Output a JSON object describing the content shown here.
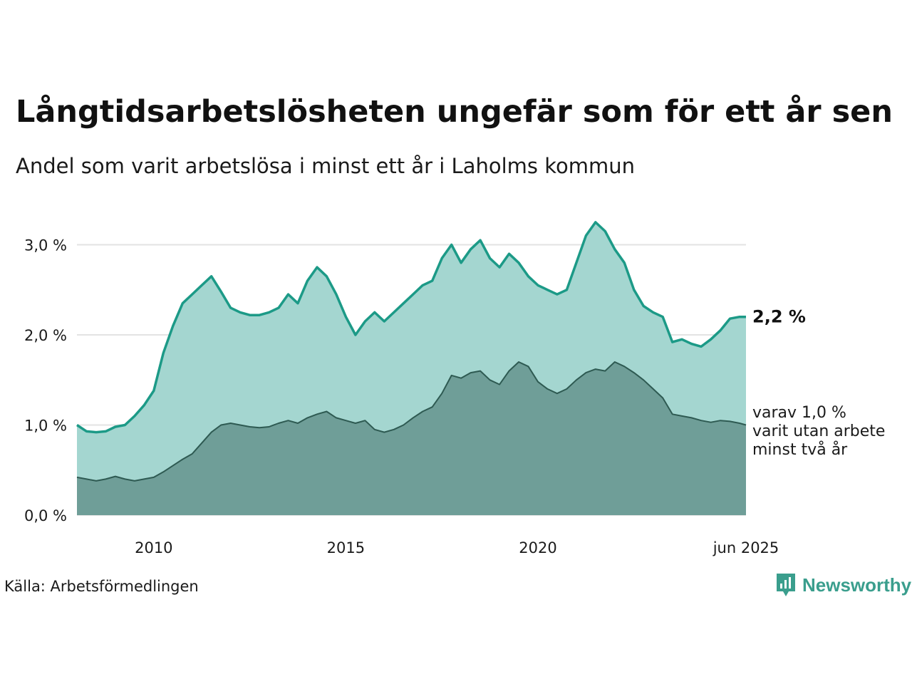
{
  "header": {
    "title": "Långtidsarbetslösheten ungefär som för ett år sen",
    "subtitle": "Andel som varit arbetslösa i minst ett år i Laholms kommun"
  },
  "footer": {
    "source": "Källa: Arbetsförmedlingen",
    "brand": "Newsworthy"
  },
  "colors": {
    "total_line": "#1c9a87",
    "total_fill": "#a4d6d0",
    "long_line": "#2e5a52",
    "long_fill": "#6f9e98",
    "grid": "#e3e3e3",
    "brand": "#3a9e8d"
  },
  "chart_data": {
    "type": "area",
    "x_ticks": [
      "2010",
      "2015",
      "2020",
      "jun 2025"
    ],
    "y_ticks": [
      "0,0 %",
      "1,0 %",
      "2,0 %",
      "3,0 %"
    ],
    "ylim": [
      0,
      3.4
    ],
    "grid": "horizontal",
    "annotations": {
      "total_label": "2,2 %",
      "long_label_lines": [
        "varav 1,0 %",
        "varit utan arbete",
        "minst två år"
      ]
    },
    "x_range": [
      "2008-01",
      "2025-06"
    ],
    "series": [
      {
        "key": "total",
        "points": [
          [
            "2008-01",
            1.0
          ],
          [
            "2008-04",
            0.93
          ],
          [
            "2008-07",
            0.92
          ],
          [
            "2008-10",
            0.93
          ],
          [
            "2009-01",
            0.98
          ],
          [
            "2009-04",
            1.0
          ],
          [
            "2009-07",
            1.1
          ],
          [
            "2009-10",
            1.22
          ],
          [
            "2010-01",
            1.38
          ],
          [
            "2010-04",
            1.8
          ],
          [
            "2010-07",
            2.1
          ],
          [
            "2010-10",
            2.35
          ],
          [
            "2011-01",
            2.45
          ],
          [
            "2011-04",
            2.55
          ],
          [
            "2011-07",
            2.65
          ],
          [
            "2011-10",
            2.48
          ],
          [
            "2012-01",
            2.3
          ],
          [
            "2012-04",
            2.25
          ],
          [
            "2012-07",
            2.22
          ],
          [
            "2012-10",
            2.22
          ],
          [
            "2013-01",
            2.25
          ],
          [
            "2013-04",
            2.3
          ],
          [
            "2013-07",
            2.45
          ],
          [
            "2013-10",
            2.35
          ],
          [
            "2014-01",
            2.6
          ],
          [
            "2014-04",
            2.75
          ],
          [
            "2014-07",
            2.65
          ],
          [
            "2014-10",
            2.45
          ],
          [
            "2015-01",
            2.2
          ],
          [
            "2015-04",
            2.0
          ],
          [
            "2015-07",
            2.15
          ],
          [
            "2015-10",
            2.25
          ],
          [
            "2016-01",
            2.15
          ],
          [
            "2016-04",
            2.25
          ],
          [
            "2016-07",
            2.35
          ],
          [
            "2016-10",
            2.45
          ],
          [
            "2017-01",
            2.55
          ],
          [
            "2017-04",
            2.6
          ],
          [
            "2017-07",
            2.85
          ],
          [
            "2017-10",
            3.0
          ],
          [
            "2018-01",
            2.8
          ],
          [
            "2018-04",
            2.95
          ],
          [
            "2018-07",
            3.05
          ],
          [
            "2018-10",
            2.85
          ],
          [
            "2019-01",
            2.75
          ],
          [
            "2019-04",
            2.9
          ],
          [
            "2019-07",
            2.8
          ],
          [
            "2019-10",
            2.65
          ],
          [
            "2020-01",
            2.55
          ],
          [
            "2020-04",
            2.5
          ],
          [
            "2020-07",
            2.45
          ],
          [
            "2020-10",
            2.5
          ],
          [
            "2021-01",
            2.8
          ],
          [
            "2021-04",
            3.1
          ],
          [
            "2021-07",
            3.25
          ],
          [
            "2021-10",
            3.15
          ],
          [
            "2022-01",
            2.95
          ],
          [
            "2022-04",
            2.8
          ],
          [
            "2022-07",
            2.5
          ],
          [
            "2022-10",
            2.32
          ],
          [
            "2023-01",
            2.25
          ],
          [
            "2023-04",
            2.2
          ],
          [
            "2023-07",
            1.92
          ],
          [
            "2023-10",
            1.95
          ],
          [
            "2024-01",
            1.9
          ],
          [
            "2024-04",
            1.87
          ],
          [
            "2024-07",
            1.95
          ],
          [
            "2024-10",
            2.05
          ],
          [
            "2025-01",
            2.18
          ],
          [
            "2025-04",
            2.2
          ],
          [
            "2025-06",
            2.2
          ]
        ]
      },
      {
        "key": "long",
        "points": [
          [
            "2008-01",
            0.42
          ],
          [
            "2008-04",
            0.4
          ],
          [
            "2008-07",
            0.38
          ],
          [
            "2008-10",
            0.4
          ],
          [
            "2009-01",
            0.43
          ],
          [
            "2009-04",
            0.4
          ],
          [
            "2009-07",
            0.38
          ],
          [
            "2009-10",
            0.4
          ],
          [
            "2010-01",
            0.42
          ],
          [
            "2010-04",
            0.48
          ],
          [
            "2010-07",
            0.55
          ],
          [
            "2010-10",
            0.62
          ],
          [
            "2011-01",
            0.68
          ],
          [
            "2011-04",
            0.8
          ],
          [
            "2011-07",
            0.92
          ],
          [
            "2011-10",
            1.0
          ],
          [
            "2012-01",
            1.02
          ],
          [
            "2012-04",
            1.0
          ],
          [
            "2012-07",
            0.98
          ],
          [
            "2012-10",
            0.97
          ],
          [
            "2013-01",
            0.98
          ],
          [
            "2013-04",
            1.02
          ],
          [
            "2013-07",
            1.05
          ],
          [
            "2013-10",
            1.02
          ],
          [
            "2014-01",
            1.08
          ],
          [
            "2014-04",
            1.12
          ],
          [
            "2014-07",
            1.15
          ],
          [
            "2014-10",
            1.08
          ],
          [
            "2015-01",
            1.05
          ],
          [
            "2015-04",
            1.02
          ],
          [
            "2015-07",
            1.05
          ],
          [
            "2015-10",
            0.95
          ],
          [
            "2016-01",
            0.92
          ],
          [
            "2016-04",
            0.95
          ],
          [
            "2016-07",
            1.0
          ],
          [
            "2016-10",
            1.08
          ],
          [
            "2017-01",
            1.15
          ],
          [
            "2017-04",
            1.2
          ],
          [
            "2017-07",
            1.35
          ],
          [
            "2017-10",
            1.55
          ],
          [
            "2018-01",
            1.52
          ],
          [
            "2018-04",
            1.58
          ],
          [
            "2018-07",
            1.6
          ],
          [
            "2018-10",
            1.5
          ],
          [
            "2019-01",
            1.45
          ],
          [
            "2019-04",
            1.6
          ],
          [
            "2019-07",
            1.7
          ],
          [
            "2019-10",
            1.65
          ],
          [
            "2020-01",
            1.48
          ],
          [
            "2020-04",
            1.4
          ],
          [
            "2020-07",
            1.35
          ],
          [
            "2020-10",
            1.4
          ],
          [
            "2021-01",
            1.5
          ],
          [
            "2021-04",
            1.58
          ],
          [
            "2021-07",
            1.62
          ],
          [
            "2021-10",
            1.6
          ],
          [
            "2022-01",
            1.7
          ],
          [
            "2022-04",
            1.65
          ],
          [
            "2022-07",
            1.58
          ],
          [
            "2022-10",
            1.5
          ],
          [
            "2023-01",
            1.4
          ],
          [
            "2023-04",
            1.3
          ],
          [
            "2023-07",
            1.12
          ],
          [
            "2023-10",
            1.1
          ],
          [
            "2024-01",
            1.08
          ],
          [
            "2024-04",
            1.05
          ],
          [
            "2024-07",
            1.03
          ],
          [
            "2024-10",
            1.05
          ],
          [
            "2025-01",
            1.04
          ],
          [
            "2025-04",
            1.02
          ],
          [
            "2025-06",
            1.0
          ]
        ]
      }
    ]
  }
}
